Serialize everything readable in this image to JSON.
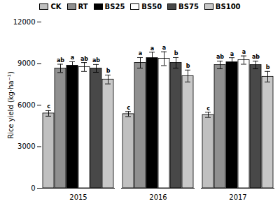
{
  "chart_data": {
    "type": "bar",
    "categories": [
      "2015",
      "2016",
      "2017"
    ],
    "series": [
      {
        "name": "CK",
        "color": "#c0c0c0",
        "values": [
          5400,
          5350,
          5300
        ],
        "errors": [
          200,
          180,
          190
        ],
        "labels": [
          "c",
          "c",
          "c"
        ]
      },
      {
        "name": "RT",
        "color": "#909090",
        "values": [
          8650,
          9050,
          8900
        ],
        "errors": [
          300,
          380,
          280
        ],
        "labels": [
          "ab",
          "a",
          "ab"
        ]
      },
      {
        "name": "BS25",
        "color": "#000000",
        "values": [
          8850,
          9400,
          9100
        ],
        "errors": [
          280,
          420,
          320
        ],
        "labels": [
          "a",
          "a",
          "a"
        ]
      },
      {
        "name": "BS50",
        "color": "#ffffff",
        "values": [
          8750,
          9350,
          9250
        ],
        "errors": [
          320,
          500,
          300
        ],
        "labels": [
          "ab",
          "a",
          "a"
        ]
      },
      {
        "name": "BS75",
        "color": "#484848",
        "values": [
          8650,
          9050,
          8900
        ],
        "errors": [
          280,
          380,
          280
        ],
        "labels": [
          "ab",
          "b",
          "ab"
        ]
      },
      {
        "name": "BS100",
        "color": "#c8c8c8",
        "values": [
          7850,
          8100,
          8050
        ],
        "errors": [
          320,
          430,
          380
        ],
        "labels": [
          "b",
          "b",
          "b"
        ]
      }
    ],
    "ylabel": "Rice yield (kg·ha⁻¹)",
    "ylim": [
      0,
      12000
    ],
    "yticks": [
      0,
      3000,
      6000,
      9000,
      12000
    ],
    "legend": "top",
    "grid": false
  }
}
